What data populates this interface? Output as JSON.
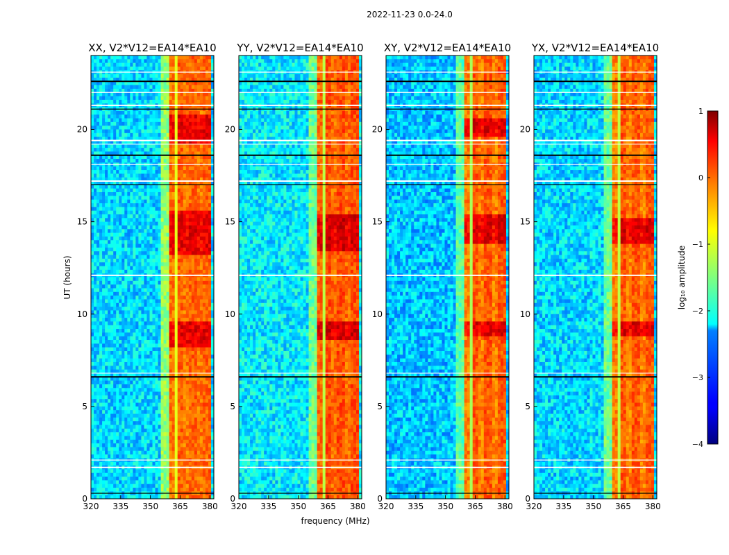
{
  "figure": {
    "suptitle": "2022-11-23 0.0-24.0"
  },
  "chart_data": {
    "type": "heatmap",
    "shared_xlabel": "frequency (MHz)",
    "ylabel": "UT (hours)",
    "xlim": [
      320,
      382
    ],
    "ylim": [
      0,
      24
    ],
    "xticks": [
      320,
      335,
      350,
      365,
      380
    ],
    "yticks": [
      0,
      5,
      10,
      15,
      20
    ],
    "colorbar": {
      "label": "log₁₀ amplitude",
      "range": [
        -4,
        1
      ],
      "ticks": [
        1,
        0,
        -1,
        -2,
        -3,
        -4
      ],
      "tick_labels": [
        "1",
        "0",
        "−1",
        "−2",
        "−3",
        "−4"
      ],
      "colormap": "jet"
    },
    "panels": [
      {
        "title": "XX, V2*V12=EA14*EA10",
        "background_level": -2.3,
        "band_levels": [
          -0.4,
          0.35,
          0.45
        ],
        "strong_band_hours": [
          [
            13.2,
            15.6
          ],
          [
            8.2,
            9.6
          ],
          [
            19.2,
            20.8
          ]
        ]
      },
      {
        "title": "YY, V2*V12=EA14*EA10",
        "background_level": -2.2,
        "band_levels": [
          -0.6,
          0.4,
          0.55
        ],
        "strong_band_hours": [
          [
            13.5,
            15.4
          ],
          [
            8.6,
            9.6
          ]
        ]
      },
      {
        "title": "XY, V2*V12=EA14*EA10",
        "background_level": -2.4,
        "band_levels": [
          -0.7,
          0.3,
          0.5
        ],
        "strong_band_hours": [
          [
            13.8,
            15.3
          ],
          [
            8.8,
            9.6
          ],
          [
            19.6,
            20.6
          ]
        ]
      },
      {
        "title": "YX, V2*V12=EA14*EA10",
        "background_level": -2.3,
        "band_levels": [
          -0.6,
          0.3,
          0.5
        ],
        "strong_band_hours": [
          [
            13.8,
            15.2
          ],
          [
            8.8,
            9.6
          ]
        ]
      }
    ],
    "rfi_band_mhz": [
      359,
      380
    ],
    "blanked_hours": [
      0.3,
      1.7,
      2.1,
      6.6,
      6.8,
      12.1,
      17.0,
      17.2,
      18.1,
      18.6,
      19.2,
      19.4,
      21.1,
      21.3,
      22.0,
      22.6,
      23.1
    ]
  }
}
